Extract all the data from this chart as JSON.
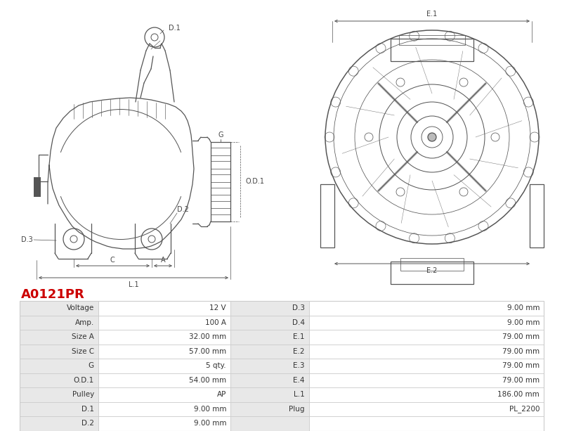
{
  "title": "A0121PR",
  "title_color": "#cc0000",
  "bg_color": "#ffffff",
  "table_data": [
    [
      "Voltage",
      "12 V",
      "D.3",
      "9.00 mm"
    ],
    [
      "Amp.",
      "100 A",
      "D.4",
      "9.00 mm"
    ],
    [
      "Size A",
      "32.00 mm",
      "E.1",
      "79.00 mm"
    ],
    [
      "Size C",
      "57.00 mm",
      "E.2",
      "79.00 mm"
    ],
    [
      "G",
      "5 qty.",
      "E.3",
      "79.00 mm"
    ],
    [
      "O.D.1",
      "54.00 mm",
      "E.4",
      "79.00 mm"
    ],
    [
      "Pulley",
      "AP",
      "L.1",
      "186.00 mm"
    ],
    [
      "D.1",
      "9.00 mm",
      "Plug",
      "PL_2200"
    ],
    [
      "D.2",
      "9.00 mm",
      "",
      ""
    ]
  ],
  "line_color": "#555555",
  "dim_color": "#555555",
  "label_color": "#444444",
  "table_bg_label": "#e8e8e8",
  "table_bg_white": "#ffffff",
  "table_border": "#cccccc"
}
